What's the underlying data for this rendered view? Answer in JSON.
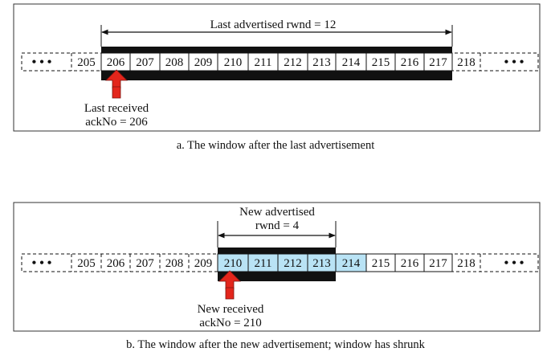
{
  "panel_a": {
    "window_label": "Last advertised rwnd  = 12",
    "pointer_label_1": "Last received",
    "pointer_label_2": "ackNo = 206",
    "caption": "a. The window after the last advertisement",
    "cells": [
      "205",
      "206",
      "207",
      "208",
      "209",
      "210",
      "211",
      "212",
      "213",
      "214",
      "215",
      "216",
      "217",
      "218"
    ]
  },
  "panel_b": {
    "window_label_1": "New advertised",
    "window_label_2": "rwnd  = 4",
    "pointer_label_1": "New received",
    "pointer_label_2": "ackNo = 210",
    "caption": "b. The window after the new advertisement; window has shrunk",
    "cells": [
      "205",
      "206",
      "207",
      "208",
      "209",
      "210",
      "211",
      "212",
      "213",
      "214",
      "215",
      "216",
      "217",
      "218"
    ]
  },
  "colors": {
    "highlight": "#b9e3f5",
    "arrow": "#e3261c",
    "bar": "#111111"
  }
}
